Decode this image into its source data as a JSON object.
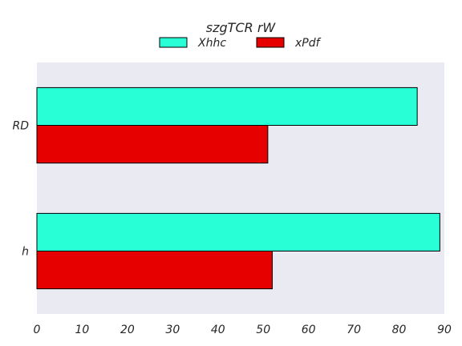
{
  "chart_data": {
    "type": "bar",
    "orientation": "horizontal",
    "categories": [
      "h",
      "RD"
    ],
    "series": [
      {
        "name": "Xhhc",
        "values": [
          89,
          84
        ],
        "color": "#29ffd7"
      },
      {
        "name": "xPdf",
        "values": [
          52,
          51
        ],
        "color": "#e60000"
      }
    ],
    "xlim": [
      0,
      90
    ],
    "xticks": [
      0,
      10,
      20,
      30,
      40,
      50,
      60,
      70,
      80,
      90
    ],
    "title": "",
    "xlabel": "",
    "ylabel": "",
    "legend": {
      "title": "szgTCR rW",
      "placement": "top-center",
      "columns": 2
    },
    "grid": false,
    "background": "#eaeaf2"
  }
}
